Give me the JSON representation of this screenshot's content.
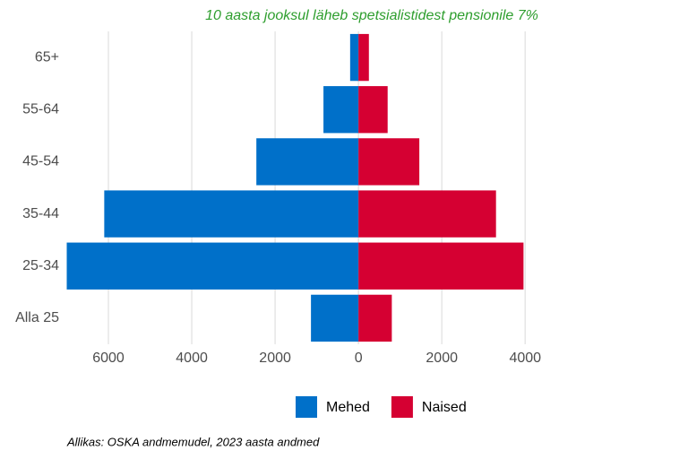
{
  "chart_data": {
    "type": "pyramid",
    "title": "10 aasta jooksul läheb spetsialistidest pensionile 7%",
    "caption": "Allikas: OSKA andmemudel, 2023 aasta andmed",
    "categories": [
      "Alla 25",
      "25-34",
      "35-44",
      "45-54",
      "55-64",
      "65+"
    ],
    "series": [
      {
        "name": "Mehed",
        "color": "#0070c9",
        "values": [
          -1140,
          -7000,
          -6100,
          -2450,
          -840,
          -200
        ]
      },
      {
        "name": "Naised",
        "color": "#d50032",
        "values": [
          800,
          3960,
          3300,
          1460,
          700,
          250
        ]
      }
    ],
    "xlim": [
      -7000,
      4500
    ],
    "xticks": [
      {
        "value": -6000,
        "label": "6000"
      },
      {
        "value": -4000,
        "label": "4000"
      },
      {
        "value": -2000,
        "label": "2000"
      },
      0,
      2000,
      4000
    ],
    "grid": true,
    "legend": "bottom"
  }
}
